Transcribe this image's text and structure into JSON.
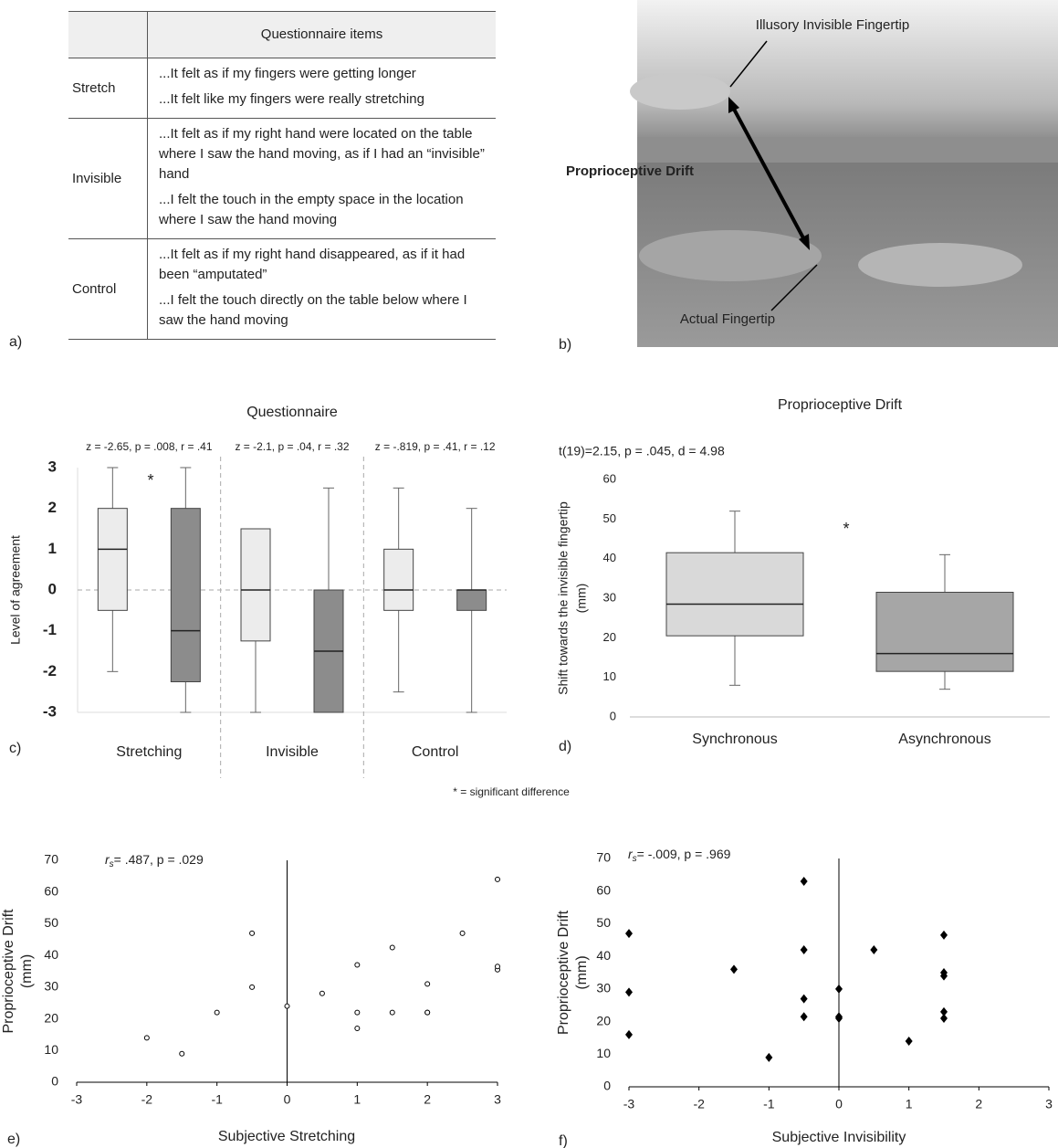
{
  "panel_labels": [
    "a)",
    "b)",
    "c)",
    "d)",
    "e)",
    "f)"
  ],
  "table": {
    "header": [
      "",
      "Questionnaire items"
    ],
    "rows": [
      {
        "label": "Stretch",
        "items": [
          "...It felt as if my fingers were getting longer",
          "...It felt like my fingers were really stretching"
        ]
      },
      {
        "label": "Invisible",
        "items": [
          "...It felt as if my right hand were located on the table where I saw the hand moving, as if I had an “invisible” hand",
          "...I felt the touch in the empty space in the location where I saw the hand moving"
        ]
      },
      {
        "label": "Control",
        "items": [
          "...It felt as if my right hand disappeared, as if it had been “amputated”",
          "...I felt the touch directly on the table below where I saw the hand moving"
        ]
      }
    ]
  },
  "photo": {
    "labels": [
      "Illusory Invisible Fingertip",
      "Proprioceptive Drift",
      "Actual Fingertip"
    ]
  },
  "note": "* = significant difference",
  "chart_data": [
    {
      "type": "box",
      "title": "Questionnaire",
      "categories": [
        "Stretching",
        "Invisible",
        "Control"
      ],
      "annotations": [
        "z = -2.65, p = .008, r = .41",
        "z = -2.1, p = .04, r = .32",
        "z = -.819, p = .41, r = .12"
      ],
      "ylabel": [
        "Level of agreement"
      ],
      "ylim": [
        -3,
        3
      ],
      "yticks": [
        -3,
        -2,
        -1,
        0,
        1,
        2,
        3
      ],
      "significance": "*",
      "boxes": [
        {
          "min": -2,
          "q1": -0.5,
          "median": 1,
          "q3": 2,
          "max": 3,
          "fill": "#ececec"
        },
        {
          "min": -3,
          "q1": -2.25,
          "median": -1,
          "q3": 2,
          "max": 3,
          "fill": "#8c8c8c"
        },
        {
          "min": -3,
          "q1": -1.25,
          "median": 0,
          "q3": 1.5,
          "max": 1.5,
          "fill": "#ececec"
        },
        {
          "min": -3,
          "q1": -3,
          "median": -1.5,
          "q3": 0,
          "max": 2.5,
          "fill": "#8c8c8c"
        },
        {
          "min": -2.5,
          "q1": -0.5,
          "median": 0,
          "q3": 1,
          "max": 2.5,
          "fill": "#ececec"
        },
        {
          "min": -3,
          "q1": -0.5,
          "median": 0,
          "q3": 0,
          "max": 2,
          "fill": "#8c8c8c"
        }
      ]
    },
    {
      "type": "box",
      "title": "Proprioceptive Drift",
      "categories": [
        "Synchronous",
        "Asynchronous"
      ],
      "annotations": [
        "t(19)=2.15, p = .045, d = 4.98"
      ],
      "ylabel": [
        "Shift towards the invisible fingertip",
        "(mm)"
      ],
      "ylim": [
        0,
        60
      ],
      "yticks": [
        0,
        10,
        20,
        30,
        40,
        50,
        60
      ],
      "significance": "*",
      "boxes": [
        {
          "min": 8,
          "q1": 20.5,
          "median": 28.5,
          "q3": 41.5,
          "max": 52,
          "fill": "#d9d9d9"
        },
        {
          "min": 7,
          "q1": 11.5,
          "median": 16,
          "q3": 31.5,
          "max": 41,
          "fill": "#a6a6a6"
        }
      ]
    },
    {
      "type": "scatter",
      "stat_symbol": "r",
      "stat_subscript": "s",
      "stat_text": "= .487, p = .029",
      "xlabel": "Subjective Stretching",
      "ylabel": [
        "Proprioceptive Drift",
        "(mm)"
      ],
      "xlim": [
        -3,
        3
      ],
      "xticks": [
        -3,
        -2,
        -1,
        0,
        1,
        2,
        3
      ],
      "ylim": [
        0,
        70
      ],
      "yticks": [
        0,
        10,
        20,
        30,
        40,
        50,
        60,
        70
      ],
      "marker": "circle",
      "color": "#000000",
      "x": [
        -2,
        -1.5,
        -1,
        -0.5,
        -0.5,
        0,
        0.5,
        1,
        1,
        1,
        1.5,
        1.5,
        2,
        2,
        2,
        2.5,
        3,
        3,
        3
      ],
      "y": [
        14,
        9,
        22,
        47,
        30,
        24,
        28,
        37,
        22,
        17,
        42.5,
        22,
        31,
        22,
        22,
        47,
        64,
        35.5,
        36.5
      ]
    },
    {
      "type": "scatter",
      "stat_symbol": "r",
      "stat_subscript": "s",
      "stat_text": "= -.009, p = .969",
      "xlabel": "Subjective Invisibility",
      "ylabel": [
        "Proprioceptive Drift",
        "(mm)"
      ],
      "xlim": [
        -3,
        3
      ],
      "xticks": [
        -3,
        -2,
        -1,
        0,
        1,
        2,
        3
      ],
      "ylim": [
        0,
        70
      ],
      "yticks": [
        0,
        10,
        20,
        30,
        40,
        50,
        60,
        70
      ],
      "marker": "diamond",
      "color": "#000000",
      "x": [
        -3,
        -3,
        -3,
        -1.5,
        -1,
        -0.5,
        -0.5,
        -0.5,
        -0.5,
        0,
        0,
        0,
        0.5,
        1,
        1.5,
        1.5,
        1.5,
        1.5,
        1.5
      ],
      "y": [
        47,
        29,
        16,
        36,
        9,
        63,
        42,
        27,
        21.5,
        30,
        21.5,
        21,
        42,
        14,
        46.5,
        35,
        34,
        23,
        21
      ]
    }
  ]
}
